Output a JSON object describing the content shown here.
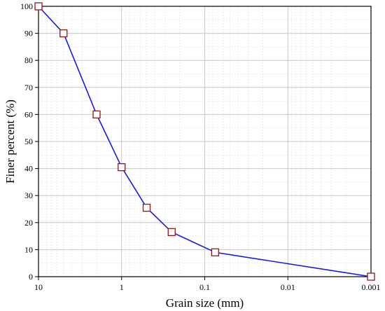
{
  "chart_data": {
    "type": "line",
    "xlabel": "Grain size (mm)",
    "ylabel": "Finer percent (%)",
    "x_scale": "log",
    "x_reversed": true,
    "xlim": [
      10,
      0.001
    ],
    "ylim": [
      0,
      100
    ],
    "x_ticks": [
      10,
      1,
      0.1,
      0.01,
      0.001
    ],
    "x_tick_labels": [
      "10",
      "1",
      "0.1",
      "0.01",
      "0.001"
    ],
    "y_ticks": [
      0,
      10,
      20,
      30,
      40,
      50,
      60,
      70,
      80,
      90,
      100
    ],
    "y_tick_labels": [
      "0",
      "10",
      "20",
      "30",
      "40",
      "50",
      "60",
      "70",
      "80",
      "90",
      "100"
    ],
    "grid": true,
    "series": [
      {
        "x": [
          10,
          5,
          2,
          1,
          0.5,
          0.25,
          0.075,
          0.001
        ],
        "y": [
          100,
          90,
          60,
          40.5,
          25.5,
          16.5,
          9,
          0
        ],
        "line_color": "#1a1adb",
        "marker": "square",
        "marker_edge_color": "#8b1a1a",
        "marker_fill_color": "#ffffff"
      }
    ]
  }
}
